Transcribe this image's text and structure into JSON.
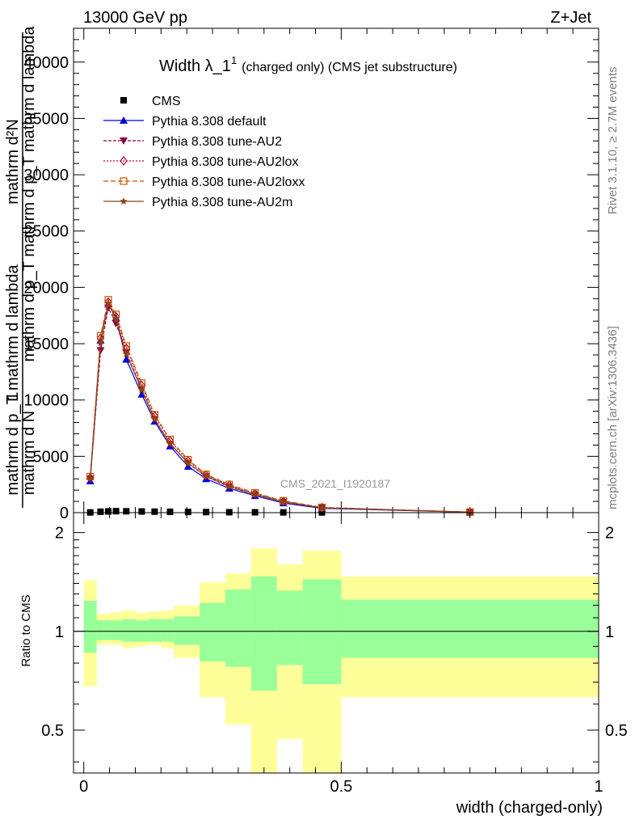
{
  "header": {
    "left": "13000 GeV pp",
    "right": "Z+Jet"
  },
  "side_labels": {
    "rivet": "Rivet 3.1.10, ≥ 2.7M events",
    "mcplots": "mcplots.cern.ch [arXiv:1306.3436]"
  },
  "chart_data": [
    {
      "type": "line",
      "title_main": "Width λ_1",
      "title_sup": "1",
      "title_rest": "(charged only) (CMS jet substructure)",
      "watermark": "CMS_2021_I1920187",
      "ylabel_parts": [
        "1",
        "mathrm d N",
        "mathrm d p_T mathrm d p_T mathrm d lambda",
        "mathrm d²N",
        "mathrm d p_T mathrm d lambda"
      ],
      "ylim": [
        0,
        43000
      ],
      "yticks": [
        0,
        5000,
        10000,
        15000,
        20000,
        25000,
        30000,
        35000,
        40000
      ],
      "ytick_labels": [
        "0",
        "5000",
        "10000",
        "15000",
        "20000",
        "25000",
        "30000",
        "35000",
        "40000"
      ],
      "xlim": [
        -0.02,
        1.0
      ],
      "x": [
        0.0125,
        0.0325,
        0.0475,
        0.0625,
        0.0825,
        0.1125,
        0.1375,
        0.1675,
        0.2025,
        0.2375,
        0.2825,
        0.3325,
        0.3875,
        0.4625,
        0.75
      ],
      "series": [
        {
          "name": "CMS",
          "color": "#000000",
          "marker": "square",
          "values": [
            20,
            80,
            110,
            130,
            120,
            105,
            90,
            75,
            60,
            50,
            40,
            32,
            25,
            18,
            8
          ]
        },
        {
          "name": "Pythia 8.308 default",
          "color": "#0000dd",
          "marker": "triangle-up",
          "dash": "",
          "values": [
            2800,
            15300,
            18500,
            17300,
            13600,
            10500,
            8100,
            5900,
            4100,
            3000,
            2150,
            1500,
            850,
            380,
            40
          ]
        },
        {
          "name": "Pythia 8.308 tune-AU2",
          "color": "#8b0045",
          "marker": "triangle-down",
          "dash": "4,2",
          "values": [
            3000,
            14400,
            18200,
            16800,
            14200,
            11000,
            8300,
            6100,
            4400,
            3200,
            2300,
            1600,
            950,
            420,
            45
          ]
        },
        {
          "name": "Pythia 8.308 tune-AU2lox",
          "color": "#b00040",
          "marker": "diamond-open",
          "dash": "2,2",
          "values": [
            3100,
            15500,
            18700,
            17400,
            14600,
            11300,
            8600,
            6400,
            4600,
            3350,
            2450,
            1700,
            1000,
            450,
            50
          ]
        },
        {
          "name": "Pythia 8.308 tune-AU2loxx",
          "color": "#cc5500",
          "marker": "square-open",
          "dash": "6,3",
          "values": [
            3200,
            15700,
            18900,
            17600,
            14800,
            11500,
            8700,
            6500,
            4700,
            3400,
            2500,
            1750,
            1050,
            470,
            52
          ]
        },
        {
          "name": "Pythia 8.308 tune-AU2m",
          "color": "#8b4513",
          "marker": "star",
          "dash": "",
          "values": [
            3050,
            15100,
            18600,
            17200,
            14100,
            10900,
            8300,
            6150,
            4400,
            3250,
            2350,
            1620,
            960,
            430,
            46
          ]
        }
      ]
    },
    {
      "type": "area",
      "ylabel": "Ratio to CMS",
      "xlabel": "width (charged-only)",
      "xlim": [
        -0.02,
        1.0
      ],
      "ylim": [
        0.37,
        2.3
      ],
      "log_y": true,
      "yticks": [
        0.5,
        1,
        2
      ],
      "ytick_labels": [
        "0.5",
        "1",
        "2"
      ],
      "xticks": [
        0,
        0.5,
        1
      ],
      "xtick_labels": [
        "0",
        "0.5",
        "1"
      ],
      "reference": 1,
      "bin_edges": [
        0.0,
        0.025,
        0.05,
        0.075,
        0.1,
        0.125,
        0.15,
        0.175,
        0.225,
        0.275,
        0.325,
        0.375,
        0.425,
        0.5,
        1.0
      ],
      "green_band": [
        [
          0.86,
          1.24
        ],
        [
          0.94,
          1.08
        ],
        [
          0.94,
          1.08
        ],
        [
          0.93,
          1.09
        ],
        [
          0.93,
          1.08
        ],
        [
          0.93,
          1.09
        ],
        [
          0.93,
          1.09
        ],
        [
          0.91,
          1.11
        ],
        [
          0.81,
          1.22
        ],
        [
          0.78,
          1.34
        ],
        [
          0.66,
          1.47
        ],
        [
          0.79,
          1.33
        ],
        [
          0.69,
          1.44
        ],
        [
          0.83,
          1.25
        ]
      ],
      "yellow_band": [
        [
          0.68,
          1.43
        ],
        [
          0.91,
          1.13
        ],
        [
          0.91,
          1.14
        ],
        [
          0.89,
          1.16
        ],
        [
          0.9,
          1.14
        ],
        [
          0.91,
          1.15
        ],
        [
          0.89,
          1.16
        ],
        [
          0.83,
          1.2
        ],
        [
          0.63,
          1.41
        ],
        [
          0.52,
          1.5
        ],
        [
          0.37,
          1.79
        ],
        [
          0.47,
          1.6
        ],
        [
          0.37,
          1.76
        ],
        [
          0.63,
          1.47
        ]
      ],
      "colors": {
        "green": "#99ff99",
        "yellow": "#ffff99"
      }
    }
  ]
}
